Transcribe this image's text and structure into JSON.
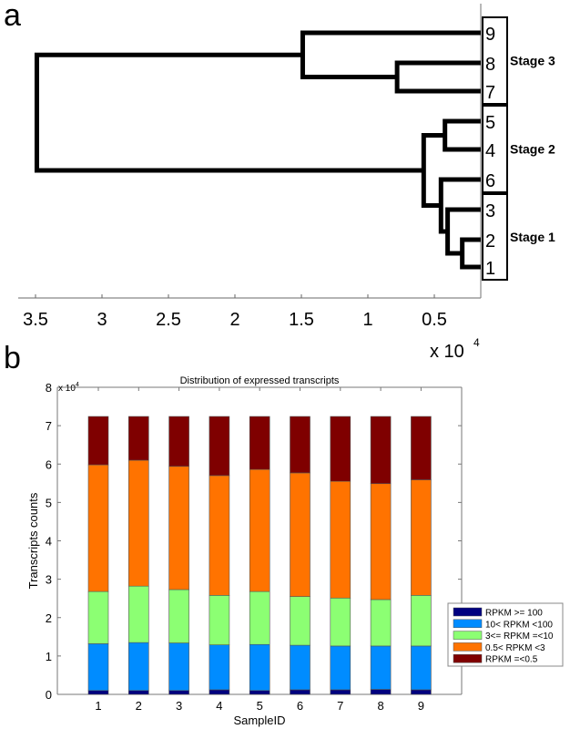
{
  "panels": {
    "a": "a",
    "b": "b"
  },
  "chart_data": [
    {
      "type": "dendrogram",
      "panel": "a",
      "title": "",
      "xlabel": "",
      "x_multiplier": "x 10",
      "x_multiplier_exp": "4",
      "x_ticks": [
        3.5,
        3,
        2.5,
        2,
        1.5,
        1,
        0.5
      ],
      "x_tick_labels": [
        "3.5",
        "3",
        "2.5",
        "2",
        "1.5",
        "1",
        "0.5"
      ],
      "x_direction": "reversed",
      "xlim": [
        0.13,
        3.55
      ],
      "leaf_order_top_to_bottom": [
        "9",
        "8",
        "7",
        "5",
        "4",
        "6",
        "3",
        "2",
        "1"
      ],
      "merges": [
        {
          "id": "n1",
          "children": [
            "2",
            "1"
          ],
          "height": 0.29
        },
        {
          "id": "n2",
          "children": [
            "3",
            "n1"
          ],
          "height": 0.4
        },
        {
          "id": "n3",
          "children": [
            "5",
            "4"
          ],
          "height": 0.42
        },
        {
          "id": "n4",
          "children": [
            "6",
            "n2"
          ],
          "height": 0.45
        },
        {
          "id": "n5",
          "children": [
            "n3",
            "n4"
          ],
          "height": 0.58
        },
        {
          "id": "n6",
          "children": [
            "8",
            "7"
          ],
          "height": 0.78
        },
        {
          "id": "n7",
          "children": [
            "9",
            "n6"
          ],
          "height": 1.49
        },
        {
          "id": "root",
          "children": [
            "n7",
            "n5"
          ],
          "height": 3.49
        }
      ],
      "groups": [
        {
          "label": "Stage 3",
          "leaves": [
            "9",
            "8",
            "7"
          ]
        },
        {
          "label": "Stage 2",
          "leaves": [
            "5",
            "4",
            "6"
          ]
        },
        {
          "label": "Stage 1",
          "leaves": [
            "3",
            "2",
            "1"
          ]
        }
      ]
    },
    {
      "type": "bar",
      "stacked": true,
      "panel": "b",
      "title": "Distribution of expressed transcripts",
      "xlabel": "SampleID",
      "ylabel": "Transcripts counts",
      "y_multiplier": "x 10",
      "y_multiplier_exp": "4",
      "ylim": [
        0,
        8
      ],
      "y_ticks": [
        0,
        1,
        2,
        3,
        4,
        5,
        6,
        7,
        8
      ],
      "categories": [
        "1",
        "2",
        "3",
        "4",
        "5",
        "6",
        "7",
        "8",
        "9"
      ],
      "grid": false,
      "legend_position": "right-middle",
      "series": [
        {
          "name": "RPKM >= 100",
          "color": "#00007f",
          "values": [
            0.1,
            0.1,
            0.1,
            0.12,
            0.1,
            0.12,
            0.12,
            0.13,
            0.12
          ]
        },
        {
          "name": "10< RPKM <100",
          "color": "#008cff",
          "values": [
            1.22,
            1.25,
            1.24,
            1.17,
            1.2,
            1.16,
            1.14,
            1.13,
            1.14
          ]
        },
        {
          "name": "3<= RPKM =<10",
          "color": "#8cff73",
          "values": [
            1.36,
            1.47,
            1.39,
            1.29,
            1.38,
            1.27,
            1.25,
            1.21,
            1.32
          ]
        },
        {
          "name": "0.5< RPKM <3",
          "color": "#ff7300",
          "values": [
            3.3,
            3.28,
            3.21,
            3.12,
            3.18,
            3.22,
            3.04,
            3.02,
            3.01
          ]
        },
        {
          "name": "RPKM =<0.5",
          "color": "#7f0000",
          "values": [
            1.26,
            1.14,
            1.3,
            1.54,
            1.38,
            1.47,
            1.69,
            1.75,
            1.65
          ]
        }
      ]
    }
  ]
}
